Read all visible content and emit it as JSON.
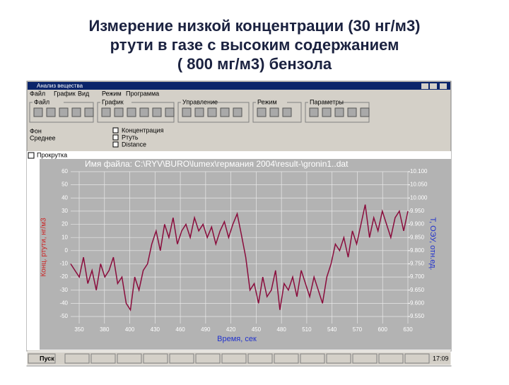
{
  "header": {
    "title_lines": [
      "Измерение низкой концентрации (30 нг/м3)",
      "ртути в газе с высоким содержанием",
      "( 800 мг/м3) бензола"
    ]
  },
  "window": {
    "title": "Анализ вещества",
    "menu": [
      "Файл",
      "График",
      "Вид",
      "Режим",
      "Программа"
    ],
    "toolbar_groups": [
      "Файл",
      "График",
      "Управление",
      "Режим",
      "Параметры"
    ],
    "side_labels": [
      "Фон",
      "Среднее"
    ],
    "checkboxes": [
      "Концентрация",
      "Ртуть",
      "Distance"
    ],
    "scroll_checkbox": "Прокрутка",
    "taskbar": {
      "start": "Пуск",
      "clock": "17:09"
    }
  },
  "chart_data": {
    "type": "line",
    "title": "Имя файла: C:\\RYV\\BURO\\lumex\\германия 2004\\result-\\gronin1..dat",
    "y_label": "Конц. ртути, нг/м3",
    "y2_label": "Т, ОЭУ, отн.ед.",
    "x_label": "Время, сек",
    "x_tick_labels": [
      "350",
      "380",
      "400",
      "430",
      "460",
      "490",
      "420",
      "450",
      "480",
      "510",
      "540",
      "570",
      "600",
      "630"
    ],
    "ylim": [
      -50,
      60
    ],
    "yticks": [
      60,
      50,
      40,
      30,
      20,
      10,
      0,
      -10,
      -20,
      -30,
      -40,
      -50
    ],
    "y2lim": [
      9.55,
      10.1
    ],
    "y2ticks": [
      {
        "value": 10.1,
        "label": "10.100"
      },
      {
        "value": 10.05,
        "label": "10.050"
      },
      {
        "value": 10,
        "label": "10.000"
      },
      {
        "value": 9.95,
        "label": "9.950"
      },
      {
        "value": 9.9,
        "label": "9.900"
      },
      {
        "value": 9.85,
        "label": "9.850"
      },
      {
        "value": 9.8,
        "label": "9.800"
      },
      {
        "value": 9.75,
        "label": "9.750"
      },
      {
        "value": 9.7,
        "label": "9.700"
      },
      {
        "value": 9.65,
        "label": "9.650"
      },
      {
        "value": 9.6,
        "label": "9.600"
      },
      {
        "value": 9.55,
        "label": "9.550"
      }
    ],
    "grid": true,
    "series": [
      {
        "color": "#8a0c3c",
        "values": [
          -10,
          -15,
          -20,
          -5,
          -25,
          -15,
          -30,
          -10,
          -20,
          -15,
          -5,
          -25,
          -20,
          -40,
          -45,
          -20,
          -30,
          -15,
          -10,
          5,
          15,
          0,
          20,
          10,
          25,
          5,
          15,
          20,
          10,
          25,
          15,
          20,
          10,
          18,
          5,
          15,
          22,
          10,
          20,
          28,
          12,
          -5,
          -30,
          -25,
          -40,
          -20,
          -35,
          -30,
          -15,
          -45,
          -25,
          -30,
          -20,
          -35,
          -15,
          -25,
          -35,
          -20,
          -30,
          -40,
          -20,
          -10,
          5,
          0,
          10,
          -5,
          15,
          5,
          20,
          35,
          10,
          25,
          15,
          30,
          20,
          10,
          25,
          30,
          15,
          30
        ]
      }
    ]
  }
}
